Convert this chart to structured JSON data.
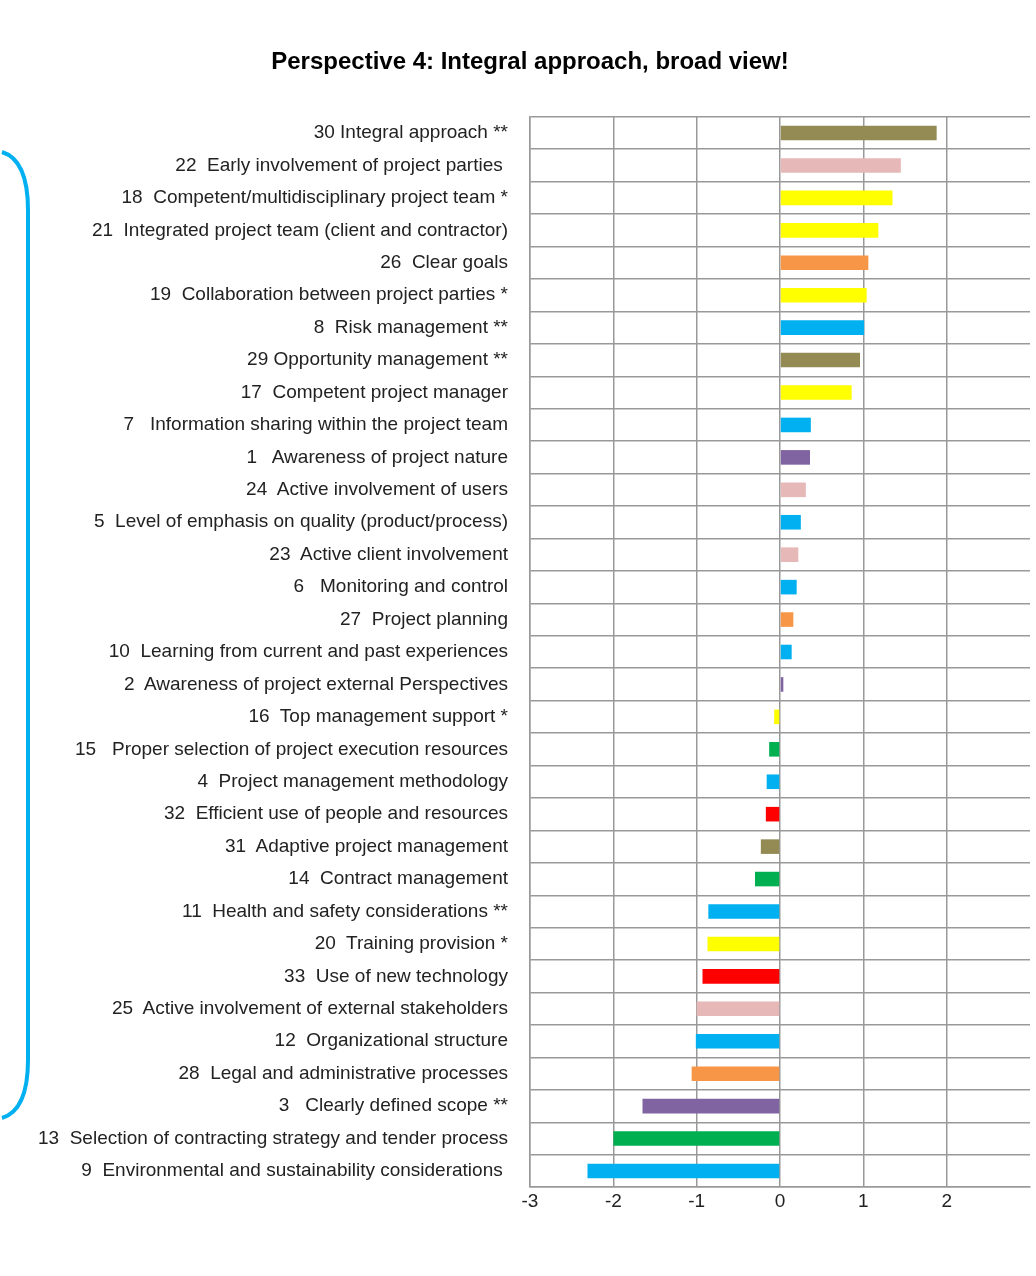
{
  "chart_data": {
    "type": "bar",
    "orientation": "horizontal",
    "title": "Perspective 4: Integral approach, broad view!",
    "categories": [
      "30 Integral approach **",
      "22  Early involvement of project parties ",
      "18  Competent/multidisciplinary project team *",
      "21  Integrated project team (client and contractor)",
      "26  Clear goals",
      "19  Collaboration between project parties *",
      "8  Risk management **",
      "29 Opportunity management **",
      "17  Competent project manager",
      "7   Information sharing within the project team",
      "1   Awareness of project nature",
      "24  Active involvement of users",
      "5  Level of emphasis on quality (product/process)",
      "23  Active client involvement",
      "6   Monitoring and control",
      "27  Project planning",
      "10  Learning from current and past experiences",
      "2  Awareness of project external Perspectives",
      "16  Top management support *",
      "15   Proper selection of project execution resources",
      "4  Project management methodology",
      "32  Efficient use of people and resources",
      "31  Adaptive project management",
      "14  Contract management",
      "11  Health and safety considerations **",
      "20  Training provision *",
      "33  Use of new technology",
      "25  Active involvement of external stakeholders",
      "12  Organizational structure",
      "28  Legal and administrative processes",
      "3   Clearly defined scope **",
      "13  Selection of contracting strategy and tender process",
      "9  Environmental and sustainability considerations "
    ],
    "values": [
      1.88,
      1.45,
      1.35,
      1.18,
      1.06,
      1.04,
      1.01,
      0.96,
      0.86,
      0.37,
      0.36,
      0.31,
      0.25,
      0.22,
      0.2,
      0.16,
      0.14,
      0.04,
      -0.07,
      -0.13,
      -0.16,
      -0.17,
      -0.23,
      -0.3,
      -0.86,
      -0.87,
      -0.93,
      -1.0,
      -1.01,
      -1.06,
      -1.65,
      -2.0,
      -2.31
    ],
    "colors": [
      "#948a54",
      "#e6b9b8",
      "#ffff00",
      "#ffff00",
      "#f79646",
      "#ffff00",
      "#00b0f0",
      "#948a54",
      "#ffff00",
      "#00b0f0",
      "#8064a2",
      "#e6b9b8",
      "#00b0f0",
      "#e6b9b8",
      "#00b0f0",
      "#f79646",
      "#00b0f0",
      "#8064a2",
      "#ffff00",
      "#00b050",
      "#00b0f0",
      "#ff0000",
      "#948a54",
      "#00b050",
      "#00b0f0",
      "#ffff00",
      "#ff0000",
      "#e6b9b8",
      "#00b0f0",
      "#f79646",
      "#8064a2",
      "#00b050",
      "#00b0f0"
    ],
    "xlim": [
      -3,
      3
    ],
    "xticks": [
      -3,
      -2,
      -1,
      0,
      1,
      2
    ],
    "grid": true
  }
}
